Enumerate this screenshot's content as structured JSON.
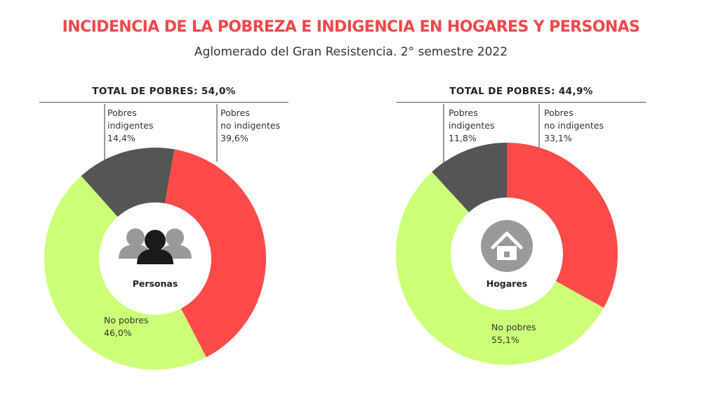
{
  "title": "INCIDENCIA DE LA POBREZA E INDIGENCIA EN HOGARES Y PERSONAS",
  "subtitle": "Aglomerado del Gran Resistencia. 2° semestre 2022",
  "colors": {
    "title": "#f0474a",
    "indigentes": "#555555",
    "no_indigentes": "#ff4a4a",
    "no_pobres": "#ccff77",
    "icon_person_front": "#1a1a1a",
    "icon_person_back": "#999999",
    "icon_house": "#999999"
  },
  "chart_data": [
    {
      "type": "pie",
      "center_label": "Personas",
      "icon": "people-icon",
      "total_label": "TOTAL DE POBRES: 54,0%",
      "slices": [
        {
          "key": "no_indigentes",
          "label_line1": "Pobres",
          "label_line2": "no indigentes",
          "value_label": "39,6%",
          "value": 39.6
        },
        {
          "key": "no_pobres",
          "label_line1": "No pobres",
          "label_line2": "",
          "value_label": "46,0%",
          "value": 46.0
        },
        {
          "key": "indigentes",
          "label_line1": "Pobres",
          "label_line2": "indigentes",
          "value_label": "14,4%",
          "value": 14.4
        }
      ]
    },
    {
      "type": "pie",
      "center_label": "Hogares",
      "icon": "house-icon",
      "total_label": "TOTAL DE POBRES: 44,9%",
      "slices": [
        {
          "key": "no_indigentes",
          "label_line1": "Pobres",
          "label_line2": "no indigentes",
          "value_label": "33,1%",
          "value": 33.1
        },
        {
          "key": "no_pobres",
          "label_line1": "No pobres",
          "label_line2": "",
          "value_label": "55,1%",
          "value": 55.1
        },
        {
          "key": "indigentes",
          "label_line1": "Pobres",
          "label_line2": "indigentes",
          "value_label": "11,8%",
          "value": 11.8
        }
      ]
    }
  ]
}
